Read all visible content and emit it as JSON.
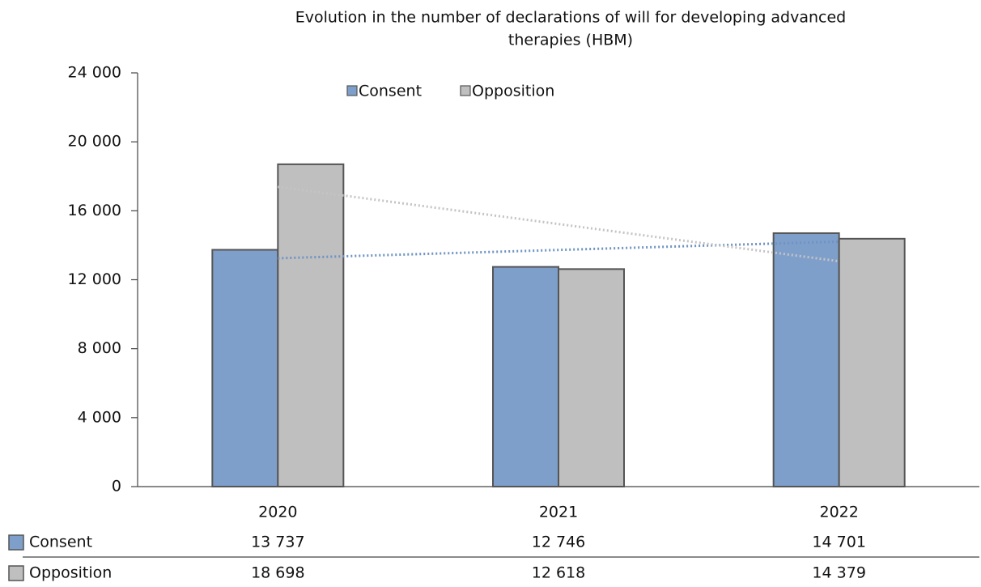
{
  "chart_data": {
    "type": "bar",
    "title": [
      "Evolution in the number of declarations of will for developing advanced",
      "therapies (HBM)"
    ],
    "categories": [
      "2020",
      "2021",
      "2022"
    ],
    "series": [
      {
        "name": "Consent",
        "color": "#7f9fcb",
        "trend_color": "#6f93c4",
        "values": [
          13737,
          12746,
          14701
        ],
        "value_labels": [
          "13 737",
          "12 746",
          "14 701"
        ]
      },
      {
        "name": "Opposition",
        "color": "#bfbfbf",
        "trend_color": "#c4c4c4",
        "values": [
          18698,
          12618,
          14379
        ],
        "value_labels": [
          "18 698",
          "12 618",
          "14 379"
        ]
      }
    ],
    "ylim": [
      0,
      24000
    ],
    "yticks": [
      {
        "value": 0,
        "label": "0"
      },
      {
        "value": 4000,
        "label": "4 000"
      },
      {
        "value": 8000,
        "label": "8 000"
      },
      {
        "value": 12000,
        "label": "12 000"
      },
      {
        "value": 16000,
        "label": "16 000"
      },
      {
        "value": 20000,
        "label": "20 000"
      },
      {
        "value": 24000,
        "label": "24 000"
      }
    ],
    "grid": false,
    "trendline": "linear",
    "legend": "top"
  }
}
